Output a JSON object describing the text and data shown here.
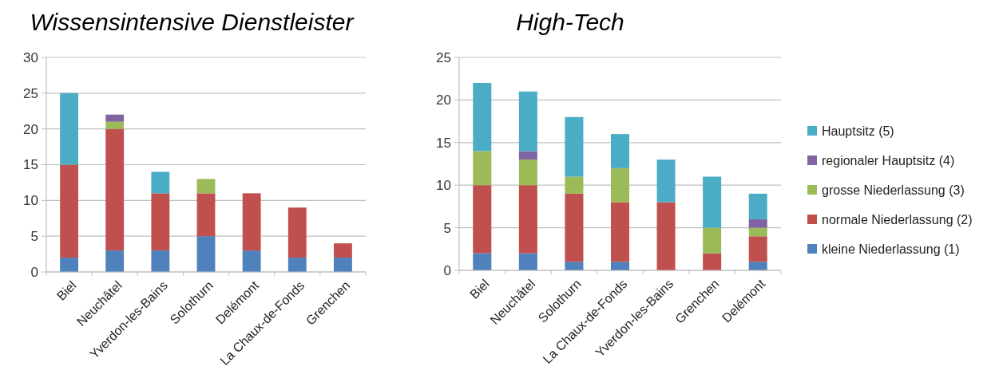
{
  "chart_data": [
    {
      "type": "bar",
      "title": "Wissensintensive Dienstleister",
      "stacked": true,
      "grid": "y",
      "legend": false,
      "categories": [
        "Biel",
        "Neuchâtel",
        "Yverdon-les-Bains",
        "Solothurn",
        "Delémont",
        "La Chaux-de-Fonds",
        "Grenchen"
      ],
      "ylim": [
        0,
        30
      ],
      "yticks": [
        0,
        5,
        10,
        15,
        20,
        25,
        30
      ],
      "series": [
        {
          "color": "#4f81bd",
          "values": [
            2,
            3,
            3,
            5,
            3,
            2,
            2
          ]
        },
        {
          "color": "#c0504d",
          "values": [
            13,
            17,
            8,
            6,
            8,
            7,
            2
          ]
        },
        {
          "color": "#9bbb59",
          "values": [
            0,
            1,
            0,
            2,
            0,
            0,
            0
          ]
        },
        {
          "color": "#8064a2",
          "values": [
            0,
            1,
            0,
            0,
            0,
            0,
            0
          ]
        },
        {
          "color": "#4bacc6",
          "values": [
            10,
            0,
            3,
            0,
            0,
            0,
            0
          ]
        }
      ]
    },
    {
      "type": "bar",
      "title": "High-Tech",
      "stacked": true,
      "grid": "y",
      "legend": "right",
      "categories": [
        "Biel",
        "Neuchâtel",
        "Solothurn",
        "La Chaux-de-Fonds",
        "Yverdon-les-Bains",
        "Grenchen",
        "Delémont"
      ],
      "ylim": [
        0,
        25
      ],
      "yticks": [
        0,
        5,
        10,
        15,
        20,
        25
      ],
      "series": [
        {
          "name": "kleine Niederlassung (1)",
          "color": "#4f81bd",
          "values": [
            2,
            2,
            1,
            1,
            0,
            0,
            1
          ]
        },
        {
          "name": "normale Niederlassung (2)",
          "color": "#c0504d",
          "values": [
            8,
            8,
            8,
            7,
            8,
            2,
            3
          ]
        },
        {
          "name": "grosse Niederlassung (3)",
          "color": "#9bbb59",
          "values": [
            4,
            3,
            2,
            4,
            0,
            3,
            1
          ]
        },
        {
          "name": "regionaler Hauptsitz (4)",
          "color": "#8064a2",
          "values": [
            0,
            1,
            0,
            0,
            0,
            0,
            1
          ]
        },
        {
          "name": "Hauptsitz (5)",
          "color": "#4bacc6",
          "values": [
            8,
            7,
            7,
            4,
            5,
            6,
            3
          ]
        }
      ]
    }
  ]
}
